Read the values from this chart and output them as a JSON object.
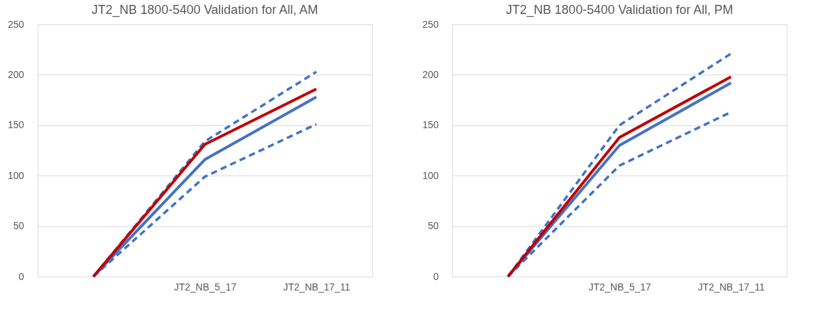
{
  "chart_data": [
    {
      "type": "line",
      "title": "JT2_NB 1800-5400 Validation for All, AM",
      "categories": [
        null,
        "JT2_NB_5_17",
        "JT2_NB_17_11"
      ],
      "ylim": [
        0,
        250
      ],
      "yticks": [
        0,
        50,
        100,
        150,
        200,
        250
      ],
      "grid": "y",
      "series": [
        {
          "color": "#4472c4",
          "line_style": "dashed",
          "values": [
            0,
            134,
            203
          ]
        },
        {
          "color": "#4472c4",
          "line_style": "dashed",
          "values": [
            0,
            99,
            151
          ]
        },
        {
          "color": "#4472c4",
          "line_style": "solid",
          "values": [
            0,
            116,
            178
          ]
        },
        {
          "color": "#c00000",
          "line_style": "solid",
          "values": [
            0,
            131,
            186
          ]
        }
      ]
    },
    {
      "type": "line",
      "title": "JT2_NB 1800-5400 Validation for All, PM",
      "categories": [
        null,
        "JT2_NB_5_17",
        "JT2_NB_17_11"
      ],
      "ylim": [
        0,
        250
      ],
      "yticks": [
        0,
        50,
        100,
        150,
        200,
        250
      ],
      "grid": "y",
      "series": [
        {
          "color": "#4472c4",
          "line_style": "dashed",
          "values": [
            0,
            150,
            221
          ]
        },
        {
          "color": "#4472c4",
          "line_style": "dashed",
          "values": [
            0,
            110,
            163
          ]
        },
        {
          "color": "#4472c4",
          "line_style": "solid",
          "values": [
            0,
            130,
            192
          ]
        },
        {
          "color": "#c00000",
          "line_style": "solid",
          "values": [
            0,
            138,
            198
          ]
        }
      ]
    }
  ]
}
